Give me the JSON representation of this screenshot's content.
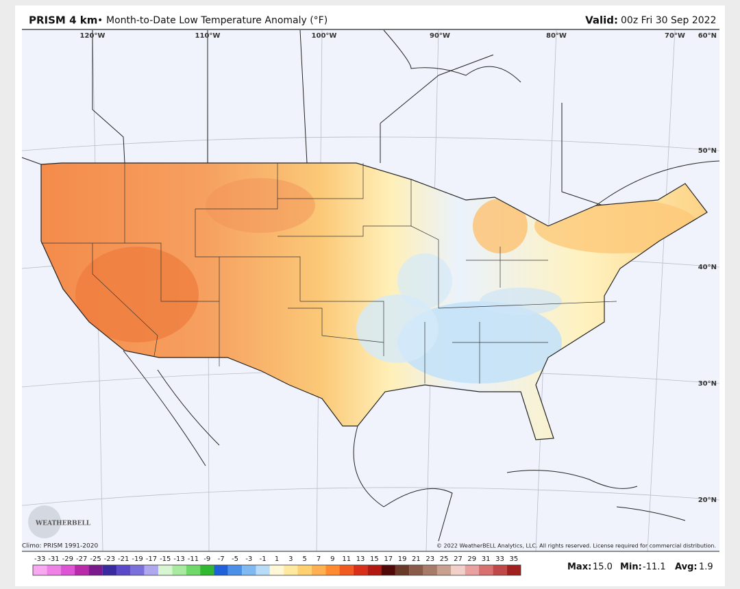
{
  "header": {
    "product": "PRISM 4 km",
    "separator": "•",
    "title": "Month-to-Date Low Temperature Anomaly (°F)",
    "valid_label": "Valid:",
    "valid_time": "00z Fri 30 Sep 2022"
  },
  "map": {
    "longitude_labels": [
      "120°W",
      "110°W",
      "100°W",
      "90°W",
      "80°W",
      "70°W"
    ],
    "latitude_labels": [
      "60°N",
      "50°N",
      "40°N",
      "30°N",
      "20°N"
    ],
    "logo": "WEATHERBELL",
    "climo": "Climo: PRISM 1991-2020",
    "copyright": "© 2022 WeatherBELL Analytics, LLC. All rights reserved. License required for commercial distribution."
  },
  "colorbar": {
    "labels": [
      -33,
      -31,
      -29,
      -27,
      -25,
      -23,
      -21,
      -19,
      -17,
      -15,
      -13,
      -11,
      -9,
      -7,
      -5,
      -3,
      -1,
      1,
      3,
      5,
      7,
      9,
      11,
      13,
      15,
      17,
      19,
      21,
      23,
      25,
      27,
      29,
      31,
      33,
      35
    ],
    "colors": [
      "#f7a8f0",
      "#ee80e6",
      "#dd55d5",
      "#b82aa8",
      "#7a1a8c",
      "#3a2aa0",
      "#5a4ac8",
      "#7a70dc",
      "#b0a8ee",
      "#d6f5d0",
      "#a8eaa0",
      "#70d868",
      "#30b830",
      "#2060d8",
      "#4a90e8",
      "#80b8f0",
      "#b8dcf8",
      "#fff8d8",
      "#ffe8a0",
      "#ffd070",
      "#ffb050",
      "#ff8a30",
      "#f05a20",
      "#d83018",
      "#b01810",
      "#500808",
      "#6a3a28",
      "#8a5a48",
      "#a87a68",
      "#c8a090",
      "#f0d0c8",
      "#e8a0a0",
      "#d87070",
      "#c04848",
      "#a02020"
    ]
  },
  "stats": {
    "max_label": "Max:",
    "max": "15.0",
    "min_label": "Min:",
    "min": "-11.1",
    "avg_label": "Avg:",
    "avg": "1.9"
  }
}
